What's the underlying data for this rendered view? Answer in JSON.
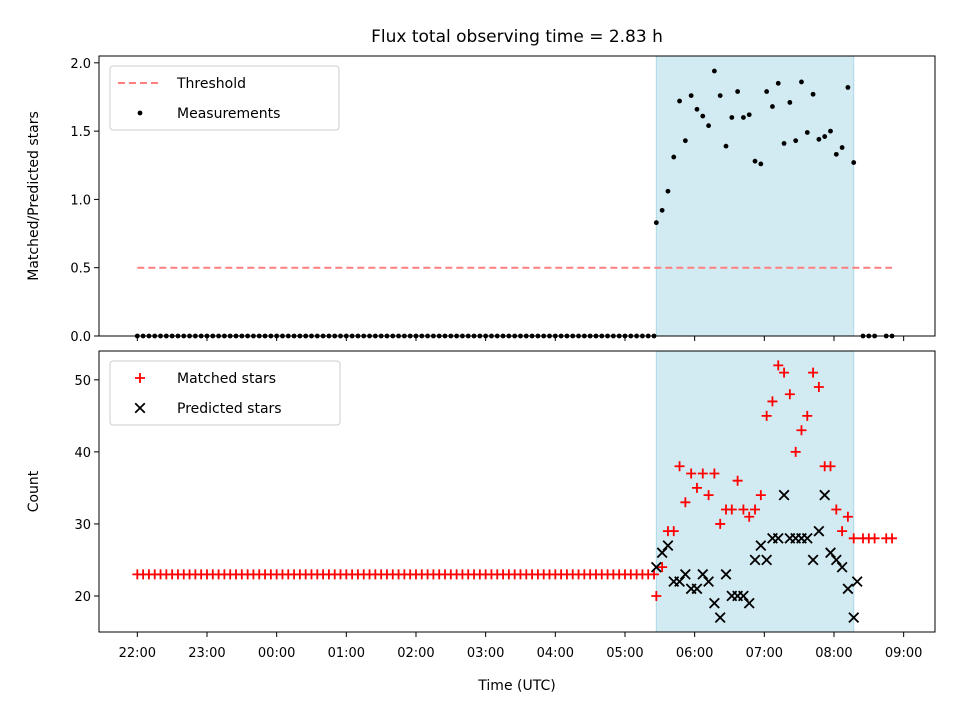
{
  "title": "Flux total observing time = 2.83 h",
  "colors": {
    "shade": "#add8e6",
    "threshold": "#ff7f7f",
    "measurements": "#000000",
    "matched": "#ff0000",
    "predicted": "#000000"
  },
  "chart_data": [
    {
      "type": "scatter",
      "ylabel": "Matched/Predicted stars",
      "ylim": [
        0,
        2.05
      ],
      "xlim_hours": [
        21.45,
        33.45
      ],
      "yticks": [
        "0.0",
        "0.5",
        "1.0",
        "1.5",
        "2.0"
      ],
      "ytick_values": [
        0,
        0.5,
        1.0,
        1.5,
        2.0
      ],
      "shaded_region": [
        "05:27",
        "08:17"
      ],
      "legend": {
        "position": "top-left",
        "entries": [
          "Threshold",
          "Measurements"
        ]
      },
      "series": [
        {
          "name": "Threshold",
          "style": "dashed-line",
          "x": [
            "22:00",
            "08:50"
          ],
          "y": [
            0.5,
            0.5
          ]
        },
        {
          "name": "Measurements",
          "style": "dots",
          "x": [
            "22:00",
            "22:05",
            "22:10",
            "22:15",
            "22:20",
            "22:25",
            "22:30",
            "22:35",
            "22:40",
            "22:45",
            "22:50",
            "22:55",
            "23:00",
            "23:05",
            "23:10",
            "23:15",
            "23:20",
            "23:25",
            "23:30",
            "23:35",
            "23:40",
            "23:45",
            "23:50",
            "23:55",
            "00:00",
            "00:05",
            "00:10",
            "00:15",
            "00:20",
            "00:25",
            "00:30",
            "00:35",
            "00:40",
            "00:45",
            "00:50",
            "00:55",
            "01:00",
            "01:05",
            "01:10",
            "01:15",
            "01:20",
            "01:25",
            "01:30",
            "01:35",
            "01:40",
            "01:45",
            "01:50",
            "01:55",
            "02:00",
            "02:05",
            "02:10",
            "02:15",
            "02:20",
            "02:25",
            "02:30",
            "02:35",
            "02:40",
            "02:45",
            "02:50",
            "02:55",
            "03:00",
            "03:05",
            "03:10",
            "03:15",
            "03:20",
            "03:25",
            "03:30",
            "03:35",
            "03:40",
            "03:45",
            "03:50",
            "03:55",
            "04:00",
            "04:05",
            "04:10",
            "04:15",
            "04:20",
            "04:25",
            "04:30",
            "04:35",
            "04:40",
            "04:45",
            "04:50",
            "04:55",
            "05:00",
            "05:05",
            "05:10",
            "05:15",
            "05:20",
            "05:25",
            "05:27",
            "05:32",
            "05:37",
            "05:42",
            "05:47",
            "05:52",
            "05:57",
            "06:02",
            "06:07",
            "06:12",
            "06:17",
            "06:22",
            "06:27",
            "06:32",
            "06:37",
            "06:42",
            "06:47",
            "06:52",
            "06:57",
            "07:02",
            "07:07",
            "07:12",
            "07:17",
            "07:22",
            "07:27",
            "07:32",
            "07:37",
            "07:42",
            "07:47",
            "07:52",
            "07:57",
            "08:02",
            "08:07",
            "08:12",
            "08:17",
            "08:25",
            "08:30",
            "08:35",
            "08:45",
            "08:50"
          ],
          "y": [
            0,
            0,
            0,
            0,
            0,
            0,
            0,
            0,
            0,
            0,
            0,
            0,
            0,
            0,
            0,
            0,
            0,
            0,
            0,
            0,
            0,
            0,
            0,
            0,
            0,
            0,
            0,
            0,
            0,
            0,
            0,
            0,
            0,
            0,
            0,
            0,
            0,
            0,
            0,
            0,
            0,
            0,
            0,
            0,
            0,
            0,
            0,
            0,
            0,
            0,
            0,
            0,
            0,
            0,
            0,
            0,
            0,
            0,
            0,
            0,
            0,
            0,
            0,
            0,
            0,
            0,
            0,
            0,
            0,
            0,
            0,
            0,
            0,
            0,
            0,
            0,
            0,
            0,
            0,
            0,
            0,
            0,
            0,
            0,
            0,
            0,
            0,
            0,
            0,
            0,
            0.83,
            0.92,
            1.06,
            1.31,
            1.72,
            1.43,
            1.76,
            1.66,
            1.61,
            1.54,
            1.94,
            1.76,
            1.39,
            1.6,
            1.79,
            1.6,
            1.62,
            1.28,
            1.26,
            1.79,
            1.68,
            1.85,
            1.41,
            1.71,
            1.43,
            1.86,
            1.49,
            1.77,
            1.44,
            1.46,
            1.5,
            1.33,
            1.38,
            1.82,
            1.27,
            0,
            0,
            0,
            0,
            0
          ]
        }
      ]
    },
    {
      "type": "scatter",
      "xlabel": "Time (UTC)",
      "ylabel": "Count",
      "ylim": [
        15,
        54
      ],
      "xlim_hours": [
        21.45,
        33.45
      ],
      "yticks": [
        "20",
        "30",
        "40",
        "50"
      ],
      "ytick_values": [
        20,
        30,
        40,
        50
      ],
      "xticks": [
        "22:00",
        "23:00",
        "00:00",
        "01:00",
        "02:00",
        "03:00",
        "04:00",
        "05:00",
        "06:00",
        "07:00",
        "08:00",
        "09:00"
      ],
      "shaded_region": [
        "05:27",
        "08:17"
      ],
      "legend": {
        "position": "top-left",
        "entries": [
          "Matched stars",
          "Predicted stars"
        ]
      },
      "series": [
        {
          "name": "Matched stars",
          "marker": "plus",
          "x": [
            "22:00",
            "22:05",
            "22:10",
            "22:15",
            "22:20",
            "22:25",
            "22:30",
            "22:35",
            "22:40",
            "22:45",
            "22:50",
            "22:55",
            "23:00",
            "23:05",
            "23:10",
            "23:15",
            "23:20",
            "23:25",
            "23:30",
            "23:35",
            "23:40",
            "23:45",
            "23:50",
            "23:55",
            "00:00",
            "00:05",
            "00:10",
            "00:15",
            "00:20",
            "00:25",
            "00:30",
            "00:35",
            "00:40",
            "00:45",
            "00:50",
            "00:55",
            "01:00",
            "01:05",
            "01:10",
            "01:15",
            "01:20",
            "01:25",
            "01:30",
            "01:35",
            "01:40",
            "01:45",
            "01:50",
            "01:55",
            "02:00",
            "02:05",
            "02:10",
            "02:15",
            "02:20",
            "02:25",
            "02:30",
            "02:35",
            "02:40",
            "02:45",
            "02:50",
            "02:55",
            "03:00",
            "03:05",
            "03:10",
            "03:15",
            "03:20",
            "03:25",
            "03:30",
            "03:35",
            "03:40",
            "03:45",
            "03:50",
            "03:55",
            "04:00",
            "04:05",
            "04:10",
            "04:15",
            "04:20",
            "04:25",
            "04:30",
            "04:35",
            "04:40",
            "04:45",
            "04:50",
            "04:55",
            "05:00",
            "05:05",
            "05:10",
            "05:15",
            "05:20",
            "05:25",
            "05:27",
            "05:32",
            "05:37",
            "05:42",
            "05:47",
            "05:52",
            "05:57",
            "06:02",
            "06:07",
            "06:12",
            "06:17",
            "06:22",
            "06:27",
            "06:32",
            "06:37",
            "06:42",
            "06:47",
            "06:52",
            "06:57",
            "07:02",
            "07:07",
            "07:12",
            "07:17",
            "07:22",
            "07:27",
            "07:32",
            "07:37",
            "07:42",
            "07:47",
            "07:52",
            "07:57",
            "08:02",
            "08:07",
            "08:12",
            "08:17",
            "08:25",
            "08:30",
            "08:35",
            "08:45",
            "08:50"
          ],
          "y": [
            23,
            23,
            23,
            23,
            23,
            23,
            23,
            23,
            23,
            23,
            23,
            23,
            23,
            23,
            23,
            23,
            23,
            23,
            23,
            23,
            23,
            23,
            23,
            23,
            23,
            23,
            23,
            23,
            23,
            23,
            23,
            23,
            23,
            23,
            23,
            23,
            23,
            23,
            23,
            23,
            23,
            23,
            23,
            23,
            23,
            23,
            23,
            23,
            23,
            23,
            23,
            23,
            23,
            23,
            23,
            23,
            23,
            23,
            23,
            23,
            23,
            23,
            23,
            23,
            23,
            23,
            23,
            23,
            23,
            23,
            23,
            23,
            23,
            23,
            23,
            23,
            23,
            23,
            23,
            23,
            23,
            23,
            23,
            23,
            23,
            23,
            23,
            23,
            23,
            23,
            20,
            24,
            29,
            29,
            38,
            33,
            37,
            35,
            37,
            34,
            37,
            30,
            32,
            32,
            36,
            32,
            31,
            32,
            34,
            45,
            47,
            52,
            51,
            48,
            40,
            43,
            45,
            51,
            49,
            38,
            38,
            32,
            29,
            31,
            28,
            28,
            28,
            28,
            28,
            28
          ]
        },
        {
          "name": "Predicted stars",
          "marker": "x",
          "x": [
            "05:27",
            "05:32",
            "05:37",
            "05:42",
            "05:47",
            "05:52",
            "05:57",
            "06:02",
            "06:07",
            "06:12",
            "06:17",
            "06:22",
            "06:27",
            "06:32",
            "06:37",
            "06:42",
            "06:47",
            "06:52",
            "06:57",
            "07:02",
            "07:07",
            "07:12",
            "07:17",
            "07:22",
            "07:27",
            "07:32",
            "07:37",
            "07:42",
            "07:47",
            "07:52",
            "07:57",
            "08:02",
            "08:07",
            "08:12",
            "08:17"
          ],
          "y": [
            24,
            26,
            27,
            22,
            22,
            23,
            21,
            21,
            23,
            22,
            19,
            17,
            23,
            20,
            20,
            20,
            19,
            25,
            27,
            25,
            28,
            28,
            34,
            28,
            28,
            28,
            28,
            25,
            29,
            34,
            26,
            25,
            24,
            21,
            17
          ]
        },
        {
          "name": "Predicted stars (tail)",
          "marker": "x",
          "x": [
            "08:20"
          ],
          "y": [
            22
          ]
        }
      ]
    }
  ]
}
